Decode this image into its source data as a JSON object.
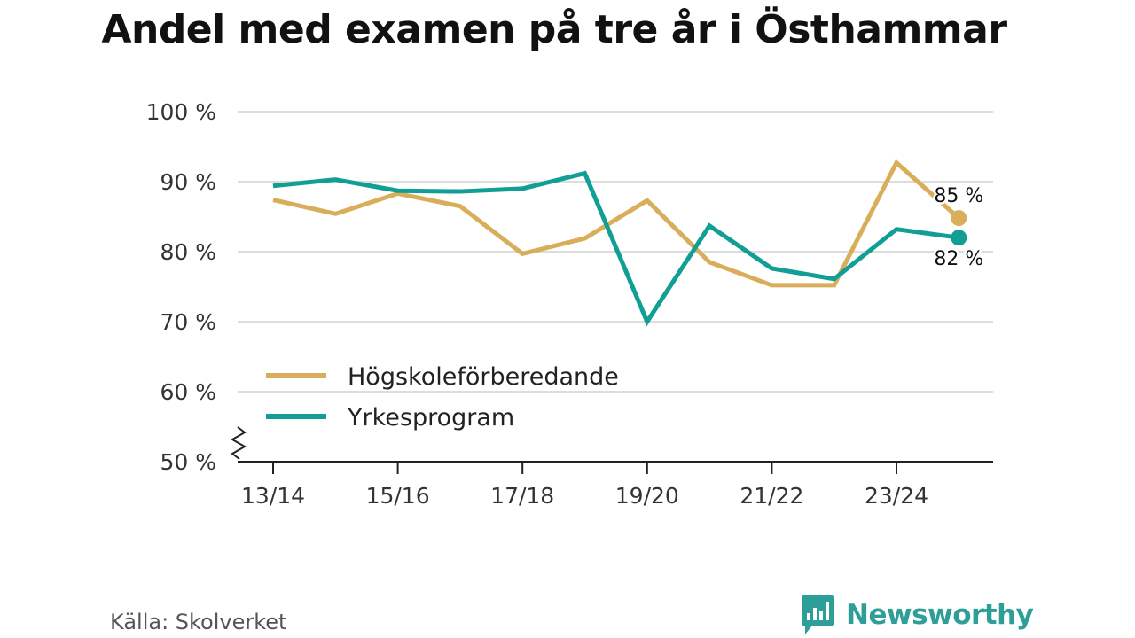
{
  "chart_data": {
    "type": "line",
    "title": "Andel med examen på tre år i Östhammar",
    "xlabel": "",
    "ylabel": "",
    "x": [
      "13/14",
      "14/15",
      "15/16",
      "16/17",
      "17/18",
      "18/19",
      "19/20",
      "20/21",
      "21/22",
      "22/23",
      "23/24",
      "24/25"
    ],
    "x_tick_labels": [
      "13/14",
      "15/16",
      "17/18",
      "19/20",
      "21/22",
      "23/24"
    ],
    "ylim": [
      50,
      100
    ],
    "y_ticks": [
      50,
      60,
      70,
      80,
      90,
      100
    ],
    "y_tick_labels": [
      "50 %",
      "60 %",
      "70 %",
      "80 %",
      "90 %",
      "100 %"
    ],
    "axis_break": true,
    "grid": true,
    "legend_position": "bottom-left",
    "series": [
      {
        "name": "Högskoleförberedande",
        "color": "#D9AE5B",
        "values": [
          87.4,
          85.4,
          88.3,
          86.5,
          79.7,
          81.9,
          87.3,
          78.5,
          75.2,
          75.2,
          92.7,
          84.8
        ],
        "end_label": "85 %"
      },
      {
        "name": "Yrkesprogram",
        "color": "#119E95",
        "values": [
          89.4,
          90.3,
          88.7,
          88.6,
          89.0,
          91.2,
          70.0,
          83.7,
          77.6,
          76.1,
          83.2,
          82.0
        ],
        "end_label": "82 %"
      }
    ]
  },
  "footer": {
    "source": "Källa: Skolverket",
    "brand_name": "Newsworthy"
  },
  "colors": {
    "brand": "#2E9E98",
    "grid": "#DDDDDD",
    "axis": "#222222"
  }
}
